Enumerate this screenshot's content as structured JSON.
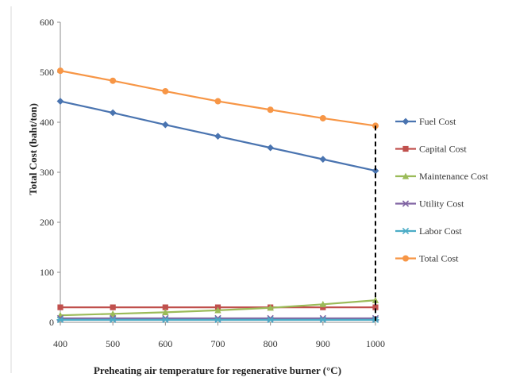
{
  "chart_data": {
    "type": "line",
    "title": "",
    "xlabel": "Preheating air temperature for regenerative burner (°C)",
    "ylabel": "Total Cost (baht/ton)",
    "x": [
      400,
      500,
      600,
      700,
      800,
      900,
      1000
    ],
    "xlim": [
      400,
      1000
    ],
    "ylim": [
      0,
      600
    ],
    "x_ticks": [
      "400",
      "500",
      "600",
      "700",
      "800",
      "900",
      "1000"
    ],
    "y_ticks": [
      "0",
      "100",
      "200",
      "300",
      "400",
      "500",
      "600"
    ],
    "grid": false,
    "legend_position": "right",
    "series": [
      {
        "name": "Fuel Cost",
        "color": "#4a74b0",
        "marker": "diamond",
        "values": [
          442,
          419,
          395,
          372,
          349,
          326,
          303
        ]
      },
      {
        "name": "Capital Cost",
        "color": "#c0504d",
        "marker": "square",
        "values": [
          30,
          30,
          30,
          30,
          30,
          30,
          30
        ]
      },
      {
        "name": "Maintenance Cost",
        "color": "#9bbb59",
        "marker": "triangle",
        "values": [
          14,
          17,
          20,
          24,
          29,
          36,
          44
        ]
      },
      {
        "name": "Utility Cost",
        "color": "#8064a2",
        "marker": "x",
        "values": [
          8,
          8,
          8,
          8,
          8,
          8,
          8
        ]
      },
      {
        "name": "Labor Cost",
        "color": "#4bacc6",
        "marker": "star",
        "values": [
          5,
          5,
          5,
          5,
          5,
          5,
          5
        ]
      },
      {
        "name": "Total Cost",
        "color": "#f79646",
        "marker": "circle",
        "values": [
          503,
          483,
          462,
          442,
          425,
          408,
          393
        ]
      }
    ],
    "annotations": [
      {
        "type": "dashed-vertical-line",
        "x": 1000,
        "y_from": 0,
        "y_to": 393,
        "color": "#000000"
      }
    ]
  }
}
